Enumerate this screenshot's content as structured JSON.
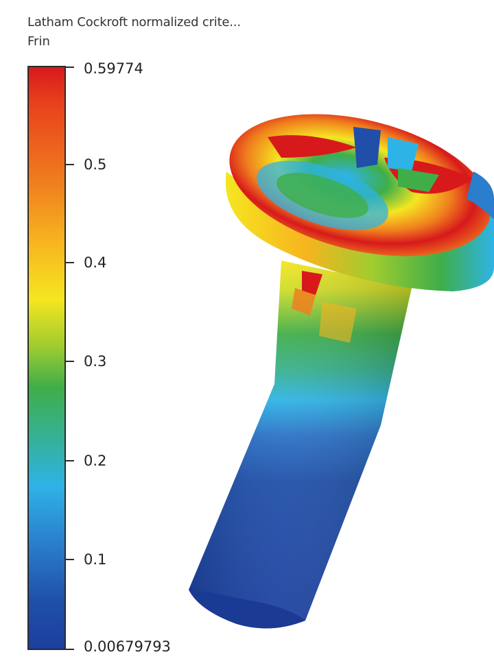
{
  "legend": {
    "title": "Latham Cockroft normalized crite...",
    "variable": "Frin",
    "max_label": "0.59774",
    "min_label": "0.00679793",
    "max_value": 0.59774,
    "min_value": 0.00679793,
    "ticks": [
      "0.5",
      "0.4",
      "0.3",
      "0.2",
      "0.1"
    ],
    "tick_values": [
      0.5,
      0.4,
      0.3,
      0.2,
      0.1
    ]
  },
  "colors": {
    "red": "#d7191c",
    "orange": "#f07f1e",
    "yellow": "#f5e621",
    "green": "#3fae49",
    "cyan": "#2eb3e6",
    "blue": "#1f4fa8",
    "dark_blue": "#1c3f9e"
  },
  "model": {
    "part": "screw",
    "icon": "fem-contour-screw"
  }
}
